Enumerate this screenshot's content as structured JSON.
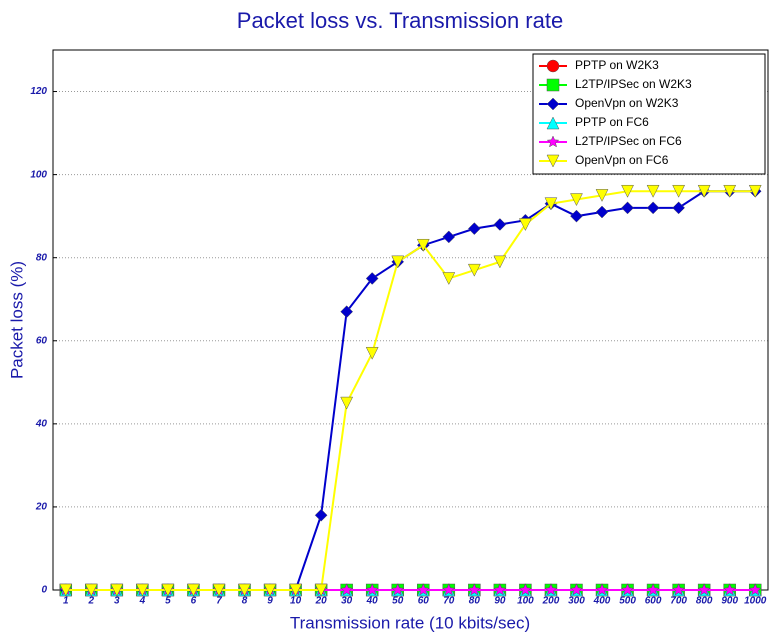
{
  "chart_data": {
    "type": "line",
    "title": "Packet loss vs. Transmission rate",
    "xlabel": "Transmission rate (10 kbits/sec)",
    "ylabel": "Packet loss (%)",
    "categories": [
      "1",
      "2",
      "3",
      "4",
      "5",
      "6",
      "7",
      "8",
      "9",
      "10",
      "20",
      "30",
      "40",
      "50",
      "60",
      "70",
      "80",
      "90",
      "100",
      "200",
      "300",
      "400",
      "500",
      "600",
      "700",
      "800",
      "900",
      "1000"
    ],
    "series": [
      {
        "name": "PPTP on W2K3",
        "color": "#ff0000",
        "marker": "circle",
        "values": [
          0,
          0,
          0,
          0,
          0,
          0,
          0,
          0,
          0,
          0,
          0,
          0,
          0,
          0,
          0,
          0,
          0,
          0,
          0,
          0,
          0,
          0,
          0,
          0,
          0,
          0,
          0,
          0
        ]
      },
      {
        "name": "L2TP/IPSec on W2K3",
        "color": "#00ff00",
        "marker": "square",
        "values": [
          0,
          0,
          0,
          0,
          0,
          0,
          0,
          0,
          0,
          0,
          0,
          0,
          0,
          0,
          0,
          0,
          0,
          0,
          0,
          0,
          0,
          0,
          0,
          0,
          0,
          0,
          0,
          0
        ]
      },
      {
        "name": "OpenVpn on W2K3",
        "color": "#0000cc",
        "marker": "diamond",
        "values": [
          0,
          0,
          0,
          0,
          0,
          0,
          0,
          0,
          0,
          0,
          18,
          67,
          75,
          79,
          83,
          85,
          87,
          88,
          89,
          93,
          90,
          91,
          92,
          92,
          92,
          96,
          96,
          96
        ]
      },
      {
        "name": "PPTP on FC6",
        "color": "#00ffff",
        "marker": "triangle-up",
        "values": [
          0,
          0,
          0,
          0,
          0,
          0,
          0,
          0,
          0,
          0,
          0,
          0,
          0,
          0,
          0,
          0,
          0,
          0,
          0,
          0,
          0,
          0,
          0,
          0,
          0,
          0,
          0,
          0
        ]
      },
      {
        "name": "L2TP/IPSec on FC6",
        "color": "#ff00ff",
        "marker": "star",
        "values": [
          0,
          0,
          0,
          0,
          0,
          0,
          0,
          0,
          0,
          0,
          0,
          0,
          0,
          0,
          0,
          0,
          0,
          0,
          0,
          0,
          0,
          0,
          0,
          0,
          0,
          0,
          0,
          0
        ]
      },
      {
        "name": "OpenVpn on FC6",
        "color": "#ffff00",
        "marker": "triangle-down",
        "values": [
          0,
          0,
          0,
          0,
          0,
          0,
          0,
          0,
          0,
          0,
          0,
          45,
          57,
          79,
          83,
          75,
          77,
          79,
          88,
          93,
          94,
          95,
          96,
          96,
          96,
          96,
          96,
          96
        ]
      }
    ],
    "ylim": [
      0,
      130
    ],
    "yticks": [
      0,
      20,
      40,
      60,
      80,
      100,
      120
    ],
    "grid": true,
    "legend": "upper right"
  }
}
